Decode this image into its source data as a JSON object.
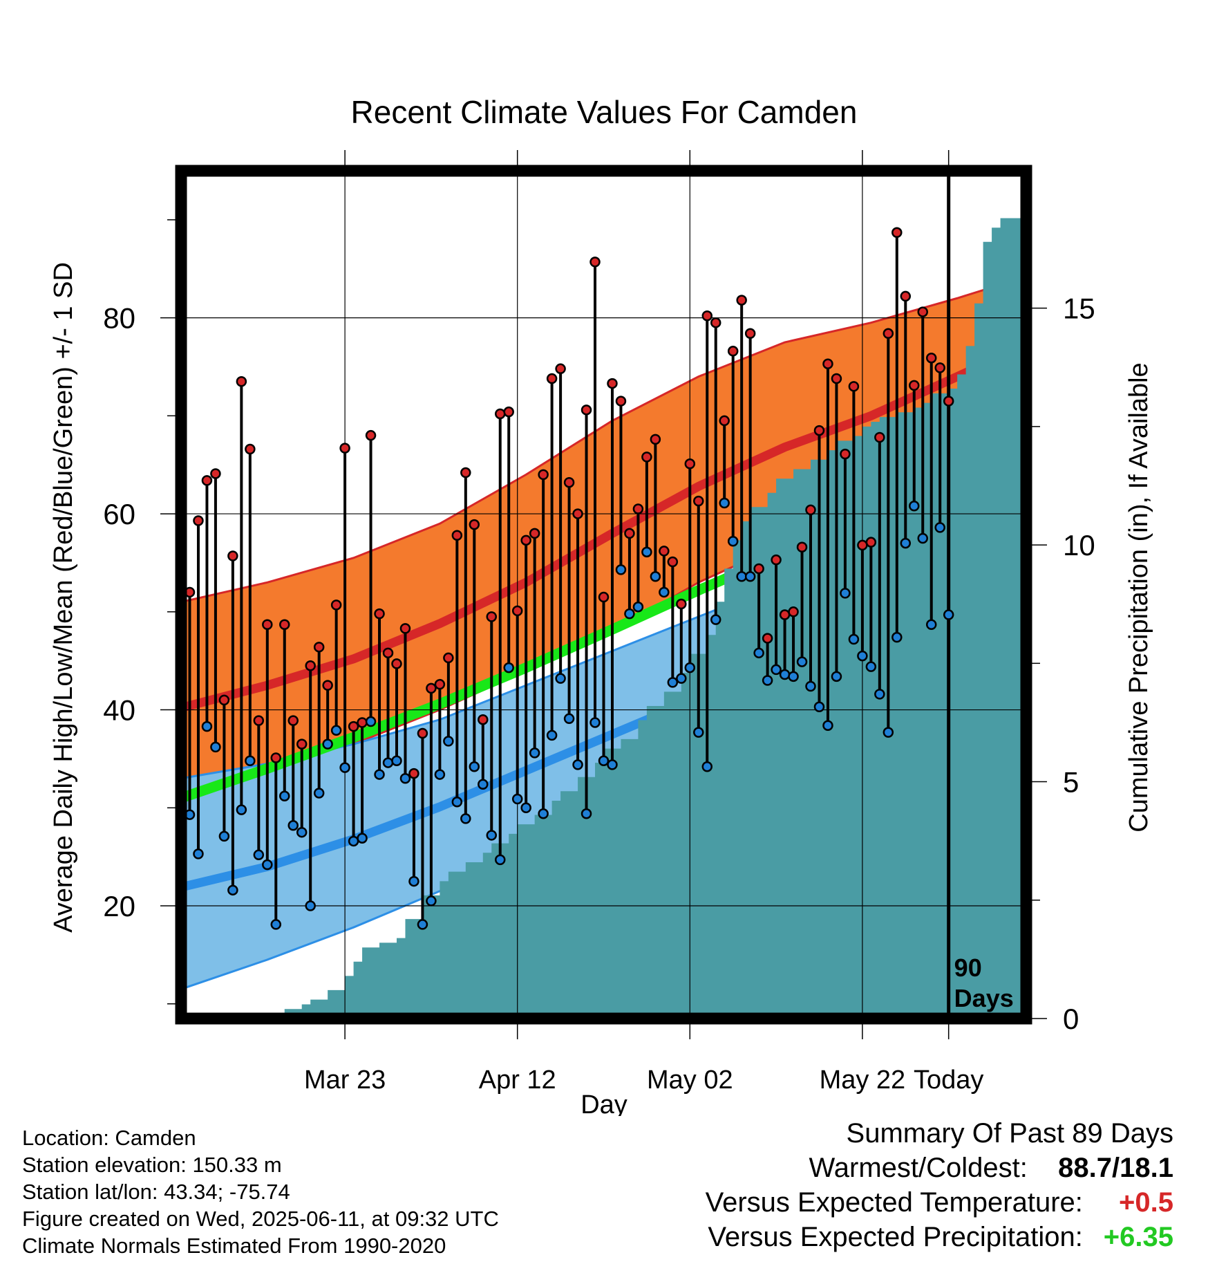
{
  "chart_data": {
    "type": "line",
    "title": "Recent Climate Values For Camden",
    "xlabel": "Day",
    "ylabel": "Average Daily High/Low/Mean (Red/Blue/Green) +/- 1 SD",
    "y2label": "Cumulative Precipitation (in), If Available",
    "ylim": [
      8.5,
      95
    ],
    "y2lim": [
      0,
      17.9
    ],
    "xlim": [
      -89,
      9
    ],
    "yticks": [
      20,
      40,
      60,
      80
    ],
    "y2ticks": [
      0,
      5,
      10,
      15
    ],
    "xticks": [
      {
        "day": -70,
        "label": "Mar 23"
      },
      {
        "day": -50,
        "label": "Apr 12"
      },
      {
        "day": -30,
        "label": "May 02"
      },
      {
        "day": -10,
        "label": "May 22"
      },
      {
        "day": 0,
        "label": "Today"
      }
    ],
    "today_annotation": [
      "90",
      "Days"
    ],
    "grid": true,
    "normals": {
      "x": [
        -89,
        -79,
        -69,
        -59,
        -49,
        -39,
        -29,
        -19,
        -9,
        1,
        9
      ],
      "high_mean": [
        40.2,
        42.5,
        45.2,
        48.8,
        53.0,
        58.0,
        62.8,
        66.8,
        70.0,
        74.0,
        77.2
      ],
      "high_sd_upper": [
        51.0,
        53.0,
        55.5,
        59.0,
        64.0,
        69.5,
        74.0,
        77.5,
        79.5,
        82.0,
        84.2
      ],
      "high_sd_lower": [
        30.0,
        33.0,
        36.5,
        40.0,
        44.0,
        48.0,
        53.0,
        57.0,
        61.0,
        66.0,
        70.0
      ],
      "mean": [
        31.0,
        34.0,
        37.2,
        40.6,
        44.3,
        48.2,
        52.2,
        56.0,
        59.8,
        63.6,
        67.3
      ],
      "low_mean": [
        21.9,
        24.0,
        26.8,
        30.1,
        33.8,
        37.5,
        41.2,
        44.8,
        48.3,
        52.6,
        57.4
      ],
      "low_sd_upper": [
        33.0,
        34.5,
        36.5,
        39.0,
        42.5,
        46.0,
        49.5,
        53.0,
        57.0,
        61.0,
        64.0
      ],
      "low_sd_lower": [
        11.5,
        14.5,
        17.8,
        21.5,
        25.5,
        29.5,
        33.5,
        37.5,
        41.0,
        46.0,
        51.0
      ]
    },
    "series": [
      {
        "name": "High",
        "color": "#d62728",
        "values": [
          52,
          59.3,
          63.4,
          64.1,
          41,
          55.7,
          73.5,
          66.6,
          38.9,
          48.7,
          35.1,
          48.7,
          38.9,
          36.5,
          44.5,
          46.4,
          42.5,
          50.7,
          66.7,
          38.3,
          38.7,
          68,
          49.8,
          45.8,
          44.7,
          48.3,
          33.5,
          37.6,
          42.2,
          42.6,
          45.3,
          57.8,
          64.2,
          58.9,
          39,
          49.5,
          70.2,
          70.4,
          50.1,
          57.3,
          58,
          64,
          73.8,
          74.8,
          63.2,
          60,
          70.6,
          85.7,
          51.5,
          73.3,
          71.5,
          58,
          60.5,
          65.8,
          67.6,
          56.2,
          55.1,
          50.8,
          65.1,
          61.3,
          80.2,
          79.5,
          69.5,
          76.6,
          81.8,
          78.4,
          54.4,
          47.3,
          55.3,
          49.7,
          50,
          56.6,
          60.4,
          68.5,
          75.3,
          73.8,
          66.1,
          73,
          56.8,
          57.1,
          67.8,
          78.4,
          88.7,
          82.2,
          73.1,
          80.6,
          75.9,
          74.9,
          71.5
        ]
      },
      {
        "name": "Low",
        "color": "#1f7fd6",
        "values": [
          29.3,
          25.3,
          38.3,
          36.2,
          27.1,
          21.6,
          29.8,
          34.8,
          25.2,
          24.2,
          18.1,
          31.2,
          28.2,
          27.5,
          20,
          31.5,
          36.5,
          37.9,
          34.1,
          26.6,
          26.9,
          38.8,
          33.4,
          34.6,
          34.8,
          33,
          22.5,
          18.1,
          20.5,
          33.4,
          36.8,
          30.6,
          28.9,
          34.2,
          32.4,
          27.2,
          24.7,
          44.3,
          30.9,
          30,
          35.6,
          29.4,
          37.4,
          43.2,
          39.1,
          34.4,
          29.4,
          38.7,
          34.8,
          34.4,
          54.3,
          49.8,
          50.5,
          56.1,
          53.6,
          52,
          42.8,
          43.2,
          44.3,
          37.7,
          34.2,
          49.2,
          61.1,
          57.2,
          53.6,
          53.6,
          45.8,
          43,
          44.1,
          43.6,
          43.4,
          44.9,
          42.4,
          40.3,
          38.4,
          43.4,
          51.9,
          47.2,
          45.5,
          44.4,
          41.6,
          37.7,
          47.4,
          57,
          60.8,
          57.5,
          48.7,
          58.6,
          49.7
        ]
      },
      {
        "name": "Cumulative Precipitation",
        "color": "#4a9ca4",
        "x": [
          -80,
          -79,
          -77,
          -75,
          -74,
          -72,
          -70,
          -69,
          -68,
          -66,
          -64,
          -63,
          -61,
          -59,
          -58,
          -56,
          -54,
          -53,
          -51,
          -50,
          -48,
          -46,
          -45,
          -43,
          -41,
          -40,
          -38,
          -36,
          -35,
          -33,
          -31,
          -30,
          -28,
          -27,
          -26,
          -25,
          -24,
          -23,
          -21,
          -20,
          -18,
          -16,
          -14,
          -13,
          -11,
          -10,
          -9,
          -8,
          -6,
          -4,
          -3,
          -2,
          0,
          1,
          2,
          3,
          4,
          5,
          6,
          9
        ],
        "values": [
          0,
          0.1,
          0.2,
          0.3,
          0.4,
          0.6,
          0.9,
          1.2,
          1.5,
          1.6,
          1.7,
          2.1,
          2.6,
          2.9,
          3.1,
          3.3,
          3.5,
          3.7,
          3.9,
          4.1,
          4.3,
          4.6,
          4.8,
          5.1,
          5.4,
          5.7,
          5.9,
          6.3,
          6.6,
          6.9,
          7.3,
          7.7,
          8.1,
          8.8,
          9.5,
          10.1,
          10.5,
          10.8,
          11.1,
          11.4,
          11.6,
          11.8,
          12.0,
          12.2,
          12.3,
          12.5,
          12.6,
          12.7,
          12.8,
          12.9,
          13.0,
          13.2,
          13.3,
          13.6,
          14.2,
          15.1,
          16.4,
          16.7,
          16.9,
          16.9
        ]
      }
    ]
  },
  "footer": {
    "location": "Location: Camden",
    "elevation": "Station elevation: 150.33 m",
    "latlon": "Station lat/lon: 43.34; -75.74",
    "created": "Figure created on Wed, 2025-06-11, at 09:32 UTC",
    "normals": "Climate Normals Estimated From 1990-2020"
  },
  "summary": {
    "heading": "Summary Of Past 89 Days",
    "warm_label": "Warmest/Coldest:",
    "warm_value": "88.7/18.1",
    "temp_label": "Versus Expected Temperature:",
    "temp_value": "+0.5",
    "precip_label": "Versus Expected Precipitation:",
    "precip_value": "+6.35"
  }
}
